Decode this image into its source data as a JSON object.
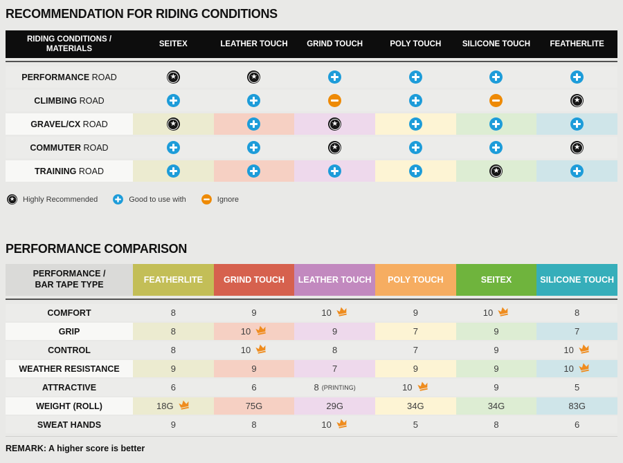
{
  "tints": [
    "#ecebd0",
    "#f6d0c3",
    "#eed9ec",
    "#fdf4d4",
    "#ddedd3",
    "#cfe5e9"
  ],
  "icon_colors": {
    "star_bg": "#161616",
    "plus_bg": "#1d9cd9",
    "minus_bg": "#ee8a05",
    "crown": "#ef8c1e"
  },
  "recommendation": {
    "title": "RECOMMENDATION FOR RIDING CONDITIONS",
    "corner_line1": "RIDING CONDITIONS /",
    "corner_line2": "MATERIALS",
    "columns": [
      "SEITEX",
      "LEATHER TOUCH",
      "GRIND TOUCH",
      "POLY TOUCH",
      "SILICONE TOUCH",
      "FEATHERLITE"
    ],
    "rows": [
      {
        "label_bold": "PERFORMANCE",
        "label_rest": "ROAD",
        "tinted": false,
        "cells": [
          "star",
          "star",
          "plus",
          "plus",
          "plus",
          "plus"
        ]
      },
      {
        "label_bold": "CLIMBING",
        "label_rest": "ROAD",
        "tinted": false,
        "cells": [
          "plus",
          "plus",
          "minus",
          "plus",
          "minus",
          "star"
        ]
      },
      {
        "label_bold": "GRAVEL/CX",
        "label_rest": "ROAD",
        "tinted": true,
        "cells": [
          "star",
          "plus",
          "star",
          "plus",
          "plus",
          "plus"
        ]
      },
      {
        "label_bold": "COMMUTER",
        "label_rest": "ROAD",
        "tinted": false,
        "cells": [
          "plus",
          "plus",
          "star",
          "plus",
          "plus",
          "star"
        ]
      },
      {
        "label_bold": "TRAINING",
        "label_rest": "ROAD",
        "tinted": true,
        "cells": [
          "plus",
          "plus",
          "plus",
          "plus",
          "star",
          "plus"
        ]
      }
    ],
    "legend": [
      {
        "icon": "star",
        "label": "Highly Recommended"
      },
      {
        "icon": "plus",
        "label": "Good to use with"
      },
      {
        "icon": "minus",
        "label": "Ignore"
      }
    ]
  },
  "performance": {
    "title": "PERFORMANCE COMPARISON",
    "corner_line1": "PERFORMANCE /",
    "corner_line2": "BAR TAPE TYPE",
    "columns": [
      {
        "label": "FEATHERLITE",
        "color": "#c3be57"
      },
      {
        "label": "GRIND TOUCH",
        "color": "#d6614e"
      },
      {
        "label": "LEATHER TOUCH",
        "color": "#c289bf"
      },
      {
        "label": "POLY TOUCH",
        "color": "#f6ad61"
      },
      {
        "label": "SEITEX",
        "color": "#6fb43d"
      },
      {
        "label": "SILICONE TOUCH",
        "color": "#36aeba"
      }
    ],
    "rows": [
      {
        "label": "COMFORT",
        "tinted": false,
        "cells": [
          {
            "text": "8"
          },
          {
            "text": "9"
          },
          {
            "text": "10",
            "crown": true
          },
          {
            "text": "9"
          },
          {
            "text": "10",
            "crown": true
          },
          {
            "text": "8"
          }
        ]
      },
      {
        "label": "GRIP",
        "tinted": true,
        "cells": [
          {
            "text": "8"
          },
          {
            "text": "10",
            "crown": true
          },
          {
            "text": "9"
          },
          {
            "text": "7"
          },
          {
            "text": "9"
          },
          {
            "text": "7"
          }
        ]
      },
      {
        "label": "CONTROL",
        "tinted": false,
        "cells": [
          {
            "text": "8"
          },
          {
            "text": "10",
            "crown": true
          },
          {
            "text": "8"
          },
          {
            "text": "7"
          },
          {
            "text": "9"
          },
          {
            "text": "10",
            "crown": true
          }
        ]
      },
      {
        "label": "WEATHER RESISTANCE",
        "tinted": true,
        "cells": [
          {
            "text": "9"
          },
          {
            "text": "9"
          },
          {
            "text": "7"
          },
          {
            "text": "9"
          },
          {
            "text": "9"
          },
          {
            "text": "10",
            "crown": true
          }
        ]
      },
      {
        "label": "ATTRACTIVE",
        "tinted": false,
        "cells": [
          {
            "text": "6"
          },
          {
            "text": "6"
          },
          {
            "text": "8",
            "suffix": "(PRINTING)"
          },
          {
            "text": "10",
            "crown": true
          },
          {
            "text": "9"
          },
          {
            "text": "5"
          }
        ]
      },
      {
        "label": "WEIGHT (ROLL)",
        "tinted": true,
        "cells": [
          {
            "text": "18G",
            "crown": true
          },
          {
            "text": "75G"
          },
          {
            "text": "29G"
          },
          {
            "text": "34G"
          },
          {
            "text": "34G"
          },
          {
            "text": "83G"
          }
        ]
      },
      {
        "label": "SWEAT HANDS",
        "tinted": false,
        "cells": [
          {
            "text": "9"
          },
          {
            "text": "8"
          },
          {
            "text": "10",
            "crown": true
          },
          {
            "text": "5"
          },
          {
            "text": "8"
          },
          {
            "text": "6"
          }
        ]
      }
    ],
    "remark": "REMARK: A higher score is better"
  },
  "chart_data": [
    {
      "type": "table",
      "title": "RECOMMENDATION FOR RIDING CONDITIONS",
      "row_header": "RIDING CONDITIONS / MATERIALS",
      "columns": [
        "SEITEX",
        "LEATHER TOUCH",
        "GRIND TOUCH",
        "POLY TOUCH",
        "SILICONE TOUCH",
        "FEATHERLITE"
      ],
      "rows": [
        "PERFORMANCE ROAD",
        "CLIMBING ROAD",
        "GRAVEL/CX ROAD",
        "COMMUTER ROAD",
        "TRAINING ROAD"
      ],
      "values": [
        [
          "highly-recommended",
          "highly-recommended",
          "good-to-use-with",
          "good-to-use-with",
          "good-to-use-with",
          "good-to-use-with"
        ],
        [
          "good-to-use-with",
          "good-to-use-with",
          "ignore",
          "good-to-use-with",
          "ignore",
          "highly-recommended"
        ],
        [
          "highly-recommended",
          "good-to-use-with",
          "highly-recommended",
          "good-to-use-with",
          "good-to-use-with",
          "good-to-use-with"
        ],
        [
          "good-to-use-with",
          "good-to-use-with",
          "highly-recommended",
          "good-to-use-with",
          "good-to-use-with",
          "highly-recommended"
        ],
        [
          "good-to-use-with",
          "good-to-use-with",
          "good-to-use-with",
          "good-to-use-with",
          "highly-recommended",
          "good-to-use-with"
        ]
      ],
      "legend": [
        "Highly Recommended",
        "Good to use with",
        "Ignore"
      ]
    },
    {
      "type": "table",
      "title": "PERFORMANCE COMPARISON",
      "row_header": "PERFORMANCE / BAR TAPE TYPE",
      "columns": [
        "FEATHERLITE",
        "GRIND TOUCH",
        "LEATHER TOUCH",
        "POLY TOUCH",
        "SEITEX",
        "SILICONE TOUCH"
      ],
      "rows": [
        "COMFORT",
        "GRIP",
        "CONTROL",
        "WEATHER RESISTANCE",
        "ATTRACTIVE",
        "WEIGHT (ROLL)",
        "SWEAT HANDS"
      ],
      "values": [
        [
          "8",
          "9",
          "10 (best)",
          "9",
          "10 (best)",
          "8"
        ],
        [
          "8",
          "10 (best)",
          "9",
          "7",
          "9",
          "7"
        ],
        [
          "8",
          "10 (best)",
          "8",
          "7",
          "9",
          "10 (best)"
        ],
        [
          "9",
          "9",
          "7",
          "9",
          "9",
          "10 (best)"
        ],
        [
          "6",
          "6",
          "8 (PRINTING)",
          "10 (best)",
          "9",
          "5"
        ],
        [
          "18G (best)",
          "75G",
          "29G",
          "34G",
          "34G",
          "83G"
        ],
        [
          "9",
          "8",
          "10 (best)",
          "5",
          "8",
          "6"
        ]
      ],
      "annotation": "REMARK: A higher score is better"
    }
  ]
}
